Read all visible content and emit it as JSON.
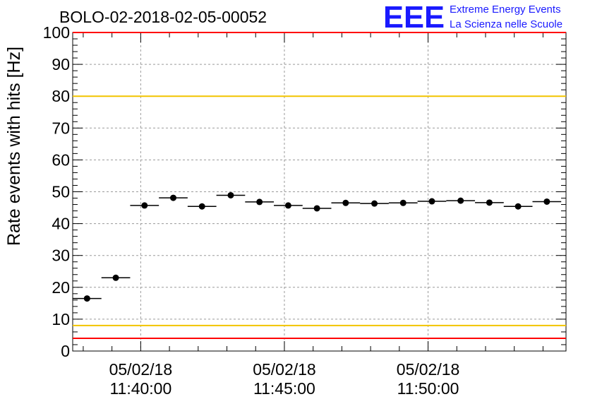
{
  "logo": {
    "mark": "EEE",
    "line1": "Extreme Energy Events",
    "line2": "La Scienza nelle Scuole",
    "color": "#1a1aff"
  },
  "chart_data": {
    "type": "scatter",
    "title": "BOLO-02-2018-02-05-00052",
    "ylabel": "Rate events with hits [Hz]",
    "xlabel": "",
    "ylim": [
      0,
      100
    ],
    "yticks": [
      0,
      10,
      20,
      30,
      40,
      50,
      60,
      70,
      80,
      90,
      100
    ],
    "xlim": [
      "05/02/18 11:37:38",
      "05/02/18 11:54:48"
    ],
    "xticks": [
      {
        "date": "05/02/18",
        "time": "11:40:00"
      },
      {
        "date": "05/02/18",
        "time": "11:45:00"
      },
      {
        "date": "05/02/18",
        "time": "11:50:00"
      }
    ],
    "grid": true,
    "bin_width_seconds": 60,
    "points": [
      {
        "x": "11:38:08",
        "y": 16.5
      },
      {
        "x": "11:39:08",
        "y": 23.0
      },
      {
        "x": "11:40:08",
        "y": 45.7
      },
      {
        "x": "11:41:08",
        "y": 48.1
      },
      {
        "x": "11:42:08",
        "y": 45.4
      },
      {
        "x": "11:43:08",
        "y": 48.9
      },
      {
        "x": "11:44:08",
        "y": 46.8
      },
      {
        "x": "11:45:08",
        "y": 45.7
      },
      {
        "x": "11:46:08",
        "y": 44.8
      },
      {
        "x": "11:47:08",
        "y": 46.5
      },
      {
        "x": "11:48:08",
        "y": 46.3
      },
      {
        "x": "11:49:08",
        "y": 46.5
      },
      {
        "x": "11:50:08",
        "y": 47.0
      },
      {
        "x": "11:51:08",
        "y": 47.2
      },
      {
        "x": "11:52:08",
        "y": 46.6
      },
      {
        "x": "11:53:08",
        "y": 45.4
      },
      {
        "x": "11:54:08",
        "y": 46.9
      }
    ],
    "reference_lines": [
      {
        "y": 100,
        "color": "#ff0000"
      },
      {
        "y": 80,
        "color": "#f2c400"
      },
      {
        "y": 8,
        "color": "#f2c400"
      },
      {
        "y": 4,
        "color": "#ff0000"
      }
    ],
    "marker_color": "#000000"
  }
}
